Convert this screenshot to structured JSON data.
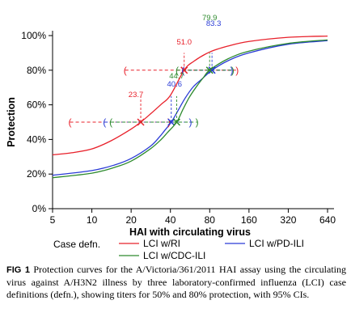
{
  "chart_data": {
    "type": "line",
    "xlabel": "HAI with circulating virus",
    "ylabel": "Protection",
    "x_scale": "log2",
    "x_ticks": [
      5,
      10,
      20,
      40,
      80,
      160,
      320,
      640
    ],
    "x_tick_labels": [
      "5",
      "10",
      "20",
      "40",
      "80",
      "160",
      "320",
      "640"
    ],
    "xlim": [
      5,
      640
    ],
    "y_ticks": [
      0,
      20,
      40,
      60,
      80,
      100
    ],
    "y_tick_labels": [
      "0%",
      "20%",
      "40%",
      "60%",
      "80%",
      "100%"
    ],
    "ylim": [
      0,
      100
    ],
    "grid": false,
    "legend": {
      "title": "Case defn.",
      "placement": "bottom",
      "entries": [
        "LCI w/RI",
        "LCI w/PD-ILI",
        "LCI w/CDC-ILI"
      ]
    },
    "series": [
      {
        "name": "LCI w/RI",
        "color": "#e8202a",
        "style": "solid",
        "x": [
          5,
          7,
          10,
          14,
          20,
          23.7,
          28,
          34,
          40,
          51,
          60,
          80,
          110,
          160,
          320,
          640
        ],
        "y": [
          31.1,
          32.3,
          34.5,
          39.2,
          46.0,
          50.0,
          54.6,
          60.3,
          65.5,
          80.0,
          85.0,
          90.5,
          93.9,
          96.6,
          99.0,
          99.7
        ],
        "t50": 23.7,
        "t80": 51.0,
        "ci50": [
          6.8,
          39.0
        ],
        "ci80": [
          18.0,
          130.0
        ]
      },
      {
        "name": "LCI w/PD-ILI",
        "color": "#2a3bd6",
        "style": "solid",
        "x": [
          5,
          10,
          15,
          20,
          28,
          33,
          36,
          40.6,
          46,
          52,
          60,
          70,
          83.3,
          110,
          160,
          320,
          640
        ],
        "y": [
          19.3,
          22.0,
          25.3,
          29.0,
          36.0,
          41.5,
          45.0,
          50.0,
          57.0,
          64.0,
          70.5,
          75.0,
          80.0,
          85.4,
          90.0,
          95.0,
          97.1
        ],
        "t50": 40.6,
        "t80": 83.3,
        "ci50": [
          12.5,
          57.0
        ],
        "ci80": [
          50.0,
          118.0
        ]
      },
      {
        "name": "LCI w/CDC-ILI",
        "color": "#2e8b2e",
        "style": "solid",
        "x": [
          5,
          10,
          15,
          20,
          28,
          34,
          38,
          44.7,
          50,
          56,
          64,
          72,
          79.9,
          110,
          160,
          320,
          640
        ],
        "y": [
          17.9,
          20.5,
          23.9,
          27.5,
          34.5,
          40.0,
          44.0,
          50.0,
          57.5,
          64.5,
          71.0,
          76.0,
          80.0,
          86.5,
          91.0,
          95.5,
          97.5
        ],
        "t50": 44.7,
        "t80": 79.9,
        "ci50": [
          14.0,
          64.0
        ],
        "ci80": [
          45.0,
          120.0
        ]
      }
    ],
    "annotations": [
      {
        "text": "23.7",
        "series": 0,
        "x": 23.7,
        "y": 50
      },
      {
        "text": "51.0",
        "series": 0,
        "x": 51.0,
        "y": 80
      },
      {
        "text": "44.7",
        "series": 2,
        "x": 44.7,
        "y": 50
      },
      {
        "text": "40.6",
        "series": 1,
        "x": 40.6,
        "y": 50
      },
      {
        "text": "79.9",
        "series": 2,
        "x": 79.9,
        "y": 80
      },
      {
        "text": "83.3",
        "series": 1,
        "x": 83.3,
        "y": 80
      }
    ]
  },
  "caption": {
    "label": "FIG 1",
    "text": "Protection curves for the A/Victoria/361/2011 HAI assay using the circulating virus against A/H3N2 illness by three laboratory-confirmed influenza (LCI) case definitions (defn.), showing titers for 50% and 80% protection, with 95% CIs."
  }
}
